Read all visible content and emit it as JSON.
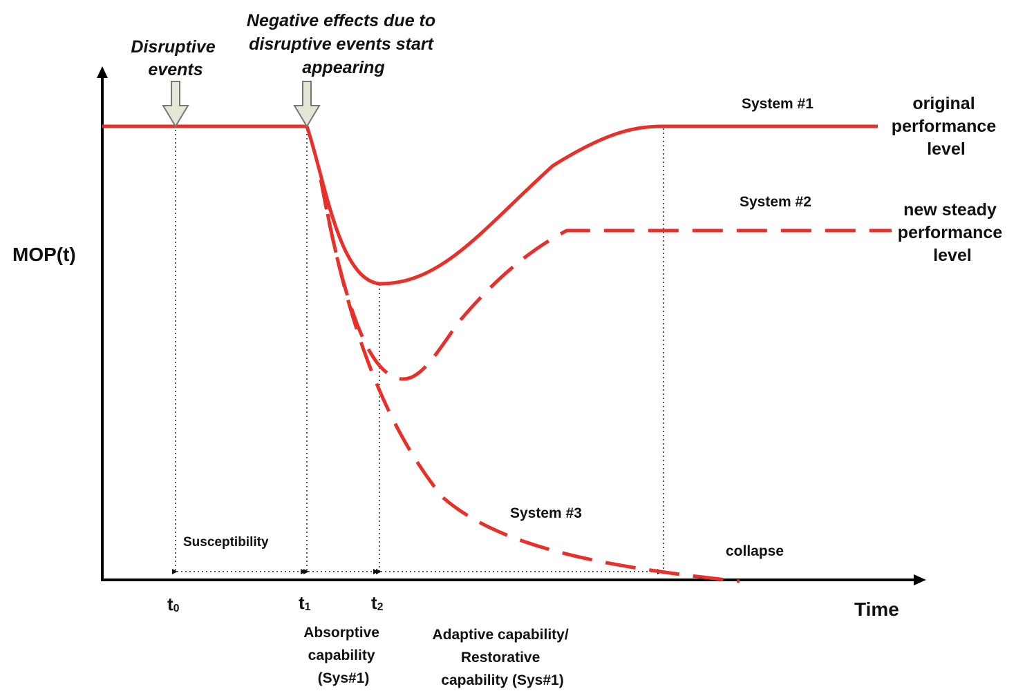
{
  "colors": {
    "curve": "#e8302a",
    "axis": "#000000",
    "arrow_fill": "#e6e6d6",
    "arrow_stroke": "#777777"
  },
  "axes": {
    "y_label": "MOP(t)",
    "x_label": "Time"
  },
  "annotations": {
    "disruptive_events": [
      "Disruptive",
      "events"
    ],
    "negative_effects": [
      "Negative effects due to",
      "disruptive events start",
      "appearing"
    ]
  },
  "ticks": {
    "t0": {
      "main": "t",
      "sub": "0"
    },
    "t1": {
      "main": "t",
      "sub": "1"
    },
    "t2": {
      "main": "t",
      "sub": "2"
    }
  },
  "systems": {
    "system1": {
      "label": "System #1",
      "outcome": [
        "original",
        "performance",
        "level"
      ],
      "style": "solid"
    },
    "system2": {
      "label": "System #2",
      "outcome": [
        "new steady",
        "performance",
        "level"
      ],
      "style": "dashed"
    },
    "system3": {
      "label": "System #3",
      "outcome": [
        "collapse"
      ],
      "style": "dashed"
    }
  },
  "intervals": {
    "susceptibility": "Susceptibility",
    "absorptive": [
      "Absorptive",
      "capability",
      "(Sys#1)"
    ],
    "adaptive": [
      "Adaptive capability/",
      "Restorative",
      "capability (Sys#1)"
    ]
  }
}
